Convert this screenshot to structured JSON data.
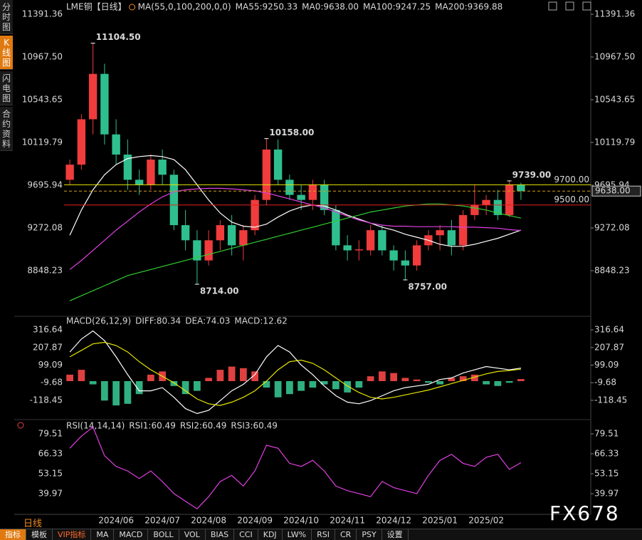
{
  "sidebar": [
    "分时图",
    "K线图",
    "闪电图",
    "合约资料"
  ],
  "period_label": "日线",
  "toolbar": [
    "指标",
    "模板",
    "VIP指标",
    "MA",
    "MACD",
    "BOLL",
    "VOL",
    "BIAS",
    "CCI",
    "KDJ",
    "LW%",
    "RSI",
    "CR",
    "PSY",
    "设置"
  ],
  "watermark": "FX678",
  "chart_data": [
    {
      "type": "candlestick",
      "title": "LME铜",
      "period": "【日线】",
      "legend": [
        {
          "text": "MA(55,0,100,200,0,0)",
          "color": "#ffffff"
        },
        {
          "text": "MA55:9250.33",
          "color": "#ffffff"
        },
        {
          "text": "MA0:9638.00",
          "color": "#e6e600"
        },
        {
          "text": "MA100:9247.25",
          "color": "#e040e0"
        },
        {
          "text": "MA200:9369.88",
          "color": "#30d030"
        }
      ],
      "ylim": [
        8424.38,
        11476.13
      ],
      "yticks": [
        11391.36,
        {
          "value": 10967.5,
          "label": "10967.50"
        },
        10543.65,
        10119.79,
        9695.94,
        9272.08,
        8848.23
      ],
      "up_color": "#f03c3c",
      "down_color": "#2fbf8f",
      "candles": [
        [
          9750,
          9950,
          9700,
          9900
        ],
        [
          9900,
          10400,
          9850,
          10350
        ],
        [
          10350,
          11104.5,
          10200,
          10800
        ],
        [
          10800,
          10900,
          10100,
          10200
        ],
        [
          10200,
          10350,
          9900,
          10000
        ],
        [
          10000,
          10150,
          9650,
          9750
        ],
        [
          9750,
          9850,
          9600,
          9700
        ],
        [
          9700,
          10000,
          9650,
          9950
        ],
        [
          9950,
          10050,
          9700,
          9800
        ],
        [
          9800,
          9850,
          9250,
          9300
        ],
        [
          9300,
          9450,
          9050,
          9150
        ],
        [
          9150,
          9250,
          8714,
          8950
        ],
        [
          8950,
          9250,
          8900,
          9150
        ],
        [
          9150,
          9350,
          9050,
          9300
        ],
        [
          9300,
          9400,
          9000,
          9100
        ],
        [
          9100,
          9300,
          8950,
          9250
        ],
        [
          9250,
          9600,
          9200,
          9550
        ],
        [
          9550,
          10158,
          9500,
          10050
        ],
        [
          10050,
          10150,
          9700,
          9750
        ],
        [
          9750,
          9800,
          9550,
          9600
        ],
        [
          9600,
          9700,
          9450,
          9550
        ],
        [
          9550,
          9750,
          9450,
          9700
        ],
        [
          9700,
          9750,
          9400,
          9450
        ],
        [
          9450,
          9500,
          9050,
          9100
        ],
        [
          9100,
          9200,
          8950,
          9050
        ],
        [
          9050,
          9150,
          8950,
          9060
        ],
        [
          9050,
          9300,
          9000,
          9250
        ],
        [
          9250,
          9300,
          9000,
          9050
        ],
        [
          9050,
          9100,
          8850,
          8950
        ],
        [
          8950,
          9050,
          8757,
          8900
        ],
        [
          8900,
          9150,
          8850,
          9100
        ],
        [
          9100,
          9250,
          9050,
          9200
        ],
        [
          9200,
          9300,
          9050,
          9250
        ],
        [
          9250,
          9350,
          9000,
          9100
        ],
        [
          9100,
          9450,
          9050,
          9400
        ],
        [
          9400,
          9700,
          9350,
          9500
        ],
        [
          9500,
          9600,
          9400,
          9550
        ],
        [
          9550,
          9650,
          9350,
          9400
        ],
        [
          9400,
          9739,
          9380,
          9700
        ],
        [
          9700,
          9720,
          9550,
          9638
        ]
      ],
      "series": [
        {
          "color": "#ffffff",
          "values": [
            9200,
            9450,
            9650,
            9800,
            9900,
            9960,
            9980,
            9990,
            9980,
            9950,
            9850,
            9700,
            9550,
            9420,
            9330,
            9290,
            9280,
            9310,
            9380,
            9440,
            9480,
            9500,
            9490,
            9450,
            9400,
            9360,
            9320,
            9280,
            9250,
            9210,
            9180,
            9150,
            9110,
            9090,
            9090,
            9110,
            9140,
            9170,
            9210,
            9250.33
          ]
        },
        {
          "color": "#e040e0",
          "values": [
            8860,
            8950,
            9050,
            9150,
            9250,
            9340,
            9430,
            9510,
            9580,
            9630,
            9650,
            9660,
            9665,
            9665,
            9660,
            9650,
            9640,
            9620,
            9590,
            9560,
            9530,
            9500,
            9470,
            9430,
            9390,
            9350,
            9320,
            9300,
            9290,
            9290,
            9285,
            9285,
            9285,
            9285,
            9280,
            9280,
            9275,
            9270,
            9255,
            9247.25
          ]
        },
        {
          "color": "#30d030",
          "values": [
            8550,
            8600,
            8650,
            8700,
            8750,
            8800,
            8830,
            8860,
            8890,
            8920,
            8950,
            8980,
            9010,
            9040,
            9070,
            9100,
            9130,
            9160,
            9190,
            9220,
            9250,
            9280,
            9310,
            9340,
            9370,
            9400,
            9430,
            9450,
            9470,
            9490,
            9500,
            9510,
            9510,
            9500,
            9490,
            9470,
            9450,
            9420,
            9395,
            9369.88
          ]
        }
      ],
      "price_lines": [
        {
          "value": 9700,
          "label": "9700.00",
          "color": "#e6e600"
        },
        {
          "value": 9500,
          "label": "9500.00",
          "color": "#e02020"
        }
      ],
      "last_price": {
        "value": 9638,
        "label": "9638.00",
        "color": "#d4a017"
      },
      "annotations": [
        {
          "value": 11104.5,
          "label": "11104.50"
        },
        {
          "value": 8714,
          "label": "8714.00"
        },
        {
          "value": 10158,
          "label": "10158.00"
        },
        {
          "value": 8757,
          "label": "8757.00"
        },
        {
          "value": 9739,
          "label": "9739.00"
        }
      ]
    },
    {
      "type": "macd",
      "legend": [
        {
          "text": "MACD(26,12,9)",
          "color": "#ffffff"
        },
        {
          "text": "DIFF:80.34",
          "color": "#ffffff"
        },
        {
          "text": "DEA:74.03",
          "color": "#e6e600"
        },
        {
          "text": "MACD:12.62",
          "color": "#e040e0"
        }
      ],
      "ylim": [
        -220,
        352
      ],
      "yticks": [
        316.64,
        207.87,
        99.09,
        -9.68,
        -118.45
      ],
      "series": [
        {
          "type": "bar",
          "up_color": "#e04040",
          "down_color": "#30b080",
          "values": [
            40,
            70,
            -20,
            -120,
            -150,
            -140,
            -80,
            40,
            60,
            -30,
            -80,
            -60,
            20,
            70,
            90,
            80,
            60,
            -40,
            -100,
            -80,
            -60,
            -40,
            -20,
            -50,
            -70,
            -40,
            30,
            60,
            50,
            20,
            10,
            -10,
            -20,
            20,
            30,
            40,
            -20,
            -30,
            -10,
            12.62
          ]
        },
        {
          "color": "#ffffff",
          "values": [
            180,
            260,
            310,
            250,
            150,
            40,
            -60,
            -60,
            -40,
            -100,
            -170,
            -200,
            -180,
            -120,
            -60,
            -20,
            40,
            150,
            220,
            180,
            100,
            40,
            -30,
            -90,
            -130,
            -140,
            -120,
            -90,
            -60,
            -40,
            -30,
            -20,
            10,
            20,
            50,
            70,
            90,
            80,
            70,
            80.34
          ]
        },
        {
          "color": "#e6e600",
          "values": [
            150,
            190,
            230,
            240,
            220,
            180,
            120,
            70,
            30,
            -10,
            -60,
            -110,
            -140,
            -150,
            -130,
            -100,
            -60,
            0,
            70,
            120,
            130,
            110,
            70,
            20,
            -30,
            -70,
            -100,
            -110,
            -100,
            -85,
            -70,
            -55,
            -35,
            -15,
            5,
            25,
            45,
            60,
            65,
            74.03
          ]
        }
      ]
    },
    {
      "type": "line",
      "legend": [
        {
          "text": "RSI(14,14,14)",
          "color": "#ffffff"
        },
        {
          "text": "RSI1:60.49",
          "color": "#ffffff"
        },
        {
          "text": "RSI2:60.49",
          "color": "#e6e600"
        },
        {
          "text": "RSI3:60.49",
          "color": "#e040e0"
        }
      ],
      "ylim": [
        27.26,
        86.1
      ],
      "yticks": [
        79.51,
        66.33,
        53.15,
        39.97
      ],
      "categories": [
        null,
        null,
        null,
        null,
        "2024/06",
        null,
        null,
        null,
        "2024/07",
        null,
        null,
        null,
        "2024/08",
        null,
        null,
        null,
        "2024/09",
        null,
        null,
        null,
        "2024/10",
        null,
        null,
        null,
        "2024/11",
        null,
        null,
        null,
        "2024/12",
        null,
        null,
        null,
        "2025/01",
        null,
        null,
        null,
        "2025/02",
        null,
        null,
        null
      ],
      "series": [
        {
          "color": "#e040e0",
          "values": [
            70,
            78,
            84,
            65,
            58,
            55,
            50,
            55,
            48,
            40,
            35,
            30,
            38,
            48,
            52,
            45,
            55,
            72,
            70,
            60,
            58,
            62,
            55,
            45,
            42,
            40,
            38,
            48,
            44,
            42,
            40,
            52,
            62,
            66,
            60,
            58,
            64,
            66,
            56,
            60.49
          ]
        }
      ]
    }
  ]
}
